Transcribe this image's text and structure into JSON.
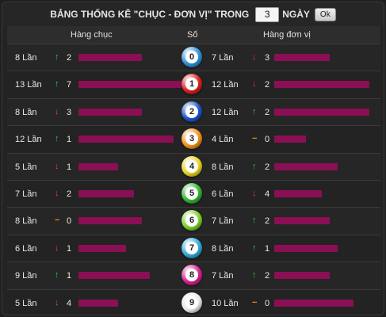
{
  "header": {
    "title": "BẢNG THỐNG KÊ \"CHỤC - ĐƠN VỊ\" TRONG",
    "days_value": "3",
    "days_label": "NGÀY",
    "ok_label": "Ok"
  },
  "columns": {
    "tens": "Hàng chục",
    "number": "Số",
    "units": "Hàng đơn vị"
  },
  "colors": {
    "bar": "#8a0f55",
    "up": "#3fc43f",
    "down": "#e84040",
    "flat": "#f08a1a"
  },
  "rows": [
    {
      "number": "0",
      "ball_color": "#2b8fd6",
      "tens": {
        "count": "8 Lần",
        "trend": "up",
        "delta": "2",
        "bar": 8
      },
      "units": {
        "count": "7 Lần",
        "trend": "down",
        "delta": "3",
        "bar": 7
      }
    },
    {
      "number": "1",
      "ball_color": "#d81f1f",
      "tens": {
        "count": "13 Lần",
        "trend": "up",
        "delta": "7",
        "bar": 13
      },
      "units": {
        "count": "12 Lần",
        "trend": "down",
        "delta": "2",
        "bar": 12
      }
    },
    {
      "number": "2",
      "ball_color": "#1b54c9",
      "tens": {
        "count": "8 Lần",
        "trend": "down",
        "delta": "3",
        "bar": 8
      },
      "units": {
        "count": "12 Lần",
        "trend": "up",
        "delta": "2",
        "bar": 12
      }
    },
    {
      "number": "3",
      "ball_color": "#f09018",
      "tens": {
        "count": "12 Lần",
        "trend": "up",
        "delta": "1",
        "bar": 12
      },
      "units": {
        "count": "4 Lần",
        "trend": "flat",
        "delta": "0",
        "bar": 4
      }
    },
    {
      "number": "4",
      "ball_color": "#e8d21c",
      "tens": {
        "count": "5 Lần",
        "trend": "down",
        "delta": "1",
        "bar": 5
      },
      "units": {
        "count": "8 Lần",
        "trend": "up",
        "delta": "2",
        "bar": 8
      }
    },
    {
      "number": "5",
      "ball_color": "#2fb52f",
      "tens": {
        "count": "7 Lần",
        "trend": "down",
        "delta": "2",
        "bar": 7
      },
      "units": {
        "count": "6 Lần",
        "trend": "down",
        "delta": "4",
        "bar": 6
      }
    },
    {
      "number": "6",
      "ball_color": "#7ccf2a",
      "tens": {
        "count": "8 Lần",
        "trend": "flat",
        "delta": "0",
        "bar": 8
      },
      "units": {
        "count": "7 Lần",
        "trend": "up",
        "delta": "2",
        "bar": 7
      }
    },
    {
      "number": "7",
      "ball_color": "#30a8d8",
      "tens": {
        "count": "6 Lần",
        "trend": "down",
        "delta": "1",
        "bar": 6
      },
      "units": {
        "count": "8 Lần",
        "trend": "up",
        "delta": "1",
        "bar": 8
      }
    },
    {
      "number": "8",
      "ball_color": "#d81f8f",
      "tens": {
        "count": "9 Lần",
        "trend": "up",
        "delta": "1",
        "bar": 9
      },
      "units": {
        "count": "7 Lần",
        "trend": "up",
        "delta": "2",
        "bar": 7
      }
    },
    {
      "number": "9",
      "ball_color": "#e8e8e8",
      "tens": {
        "count": "5 Lần",
        "trend": "down",
        "delta": "4",
        "bar": 5
      },
      "units": {
        "count": "10 Lần",
        "trend": "flat",
        "delta": "0",
        "bar": 10
      }
    }
  ]
}
